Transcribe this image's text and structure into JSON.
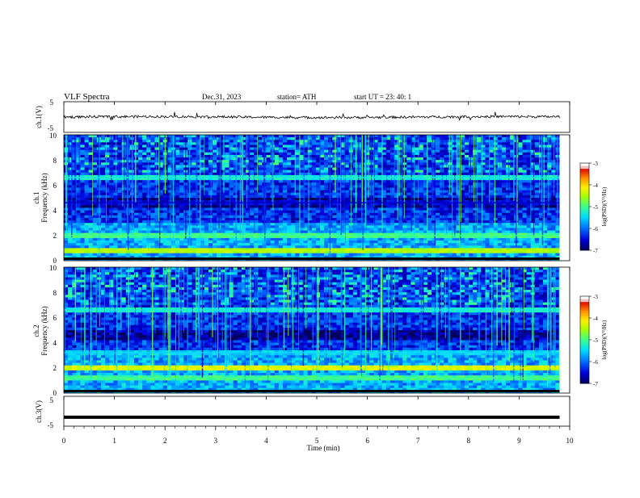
{
  "header": {
    "title": "VLF  Spectra",
    "date": "Dec.31, 2023",
    "station": "station= ATH",
    "start_ut": "start  UT  =    23: 40: 1"
  },
  "panels": {
    "ch1_waveform": {
      "ylabel": "ch.1(V)",
      "yticks": [
        "5",
        "-5"
      ]
    },
    "ch1_spectrogram": {
      "ylabel": "ch.1\nFrequency (kHz)",
      "ylabel_line1": "ch.1",
      "ylabel_line2": "Frequency (kHz)",
      "yticks": [
        "10",
        "8",
        "6",
        "4",
        "2",
        "0"
      ]
    },
    "ch2_spectrogram": {
      "ylabel_line1": "ch.2",
      "ylabel_line2": "Frequency (kHz)",
      "yticks": [
        "10",
        "8",
        "6",
        "4",
        "2",
        "0"
      ]
    },
    "ch3_waveform": {
      "ylabel": "ch.3(V)",
      "yticks": [
        "5",
        "-5"
      ]
    }
  },
  "colorbar": {
    "label": "log(PSD)(V²/Hz)",
    "ticks": [
      "-3",
      "-4",
      "-5",
      "-6",
      "-7"
    ],
    "colors": [
      "#000080",
      "#0000ff",
      "#0080ff",
      "#00e0ff",
      "#40ff80",
      "#a0ff00",
      "#ffff00",
      "#ffa000",
      "#ff2000",
      "#c00000",
      "#ffffff"
    ]
  },
  "xaxis": {
    "label": "Time  (min)",
    "ticks": [
      "0",
      "1",
      "2",
      "3",
      "4",
      "5",
      "6",
      "7",
      "8",
      "9",
      "10"
    ]
  },
  "chart_data": {
    "type": "heatmap",
    "title": "VLF  Spectra",
    "xlabel": "Time  (min)",
    "xlim": [
      0,
      10
    ],
    "data_extent_minutes": 9.8,
    "spectrograms": [
      {
        "name": "ch.1",
        "ylabel": "Frequency (kHz)",
        "ylim": [
          0,
          10
        ],
        "color_scale": "log(PSD)(V²/Hz)",
        "clim": [
          -7,
          -3
        ],
        "features_khz": [
          {
            "frequency": 2.0,
            "level": -5.0
          },
          {
            "frequency": 0.8,
            "level": -4.5
          },
          {
            "frequency": 6.6,
            "level": -5.3
          },
          {
            "frequency": 4.6,
            "level": -6.6
          }
        ]
      },
      {
        "name": "ch.2",
        "ylabel": "Frequency (kHz)",
        "ylim": [
          0,
          10
        ],
        "color_scale": "log(PSD)(V²/Hz)",
        "clim": [
          -7,
          -3
        ],
        "features_khz": [
          {
            "frequency": 2.0,
            "level": -4.3
          },
          {
            "frequency": 1.2,
            "level": -5.0
          },
          {
            "frequency": 6.6,
            "level": -5.3
          },
          {
            "frequency": 3.2,
            "level": -5.5
          }
        ]
      }
    ],
    "waveforms": [
      {
        "name": "ch.1(V)",
        "ylim": [
          -5,
          5
        ],
        "mean": 0.0,
        "amplitude": 0.4
      },
      {
        "name": "ch.3(V)",
        "ylim": [
          -5,
          5
        ],
        "mean": -2.0,
        "amplitude": 0.05
      }
    ]
  }
}
